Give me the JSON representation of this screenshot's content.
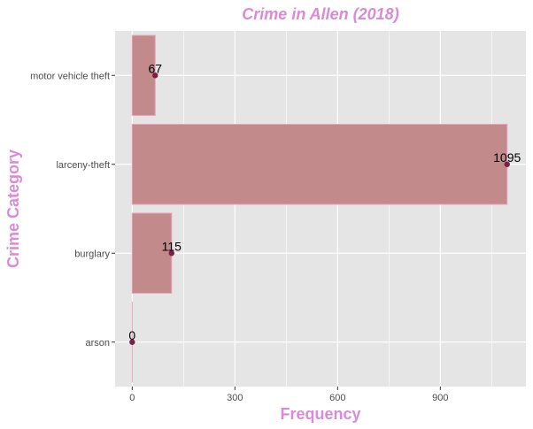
{
  "chart_data": {
    "type": "bar",
    "orientation": "horizontal",
    "title": "Crime in Allen (2018)",
    "xlabel": "Frequency",
    "ylabel": "Crime Category",
    "categories": [
      "arson",
      "burglary",
      "larceny-theft",
      "motor vehicle theft"
    ],
    "values": [
      0,
      115,
      1095,
      67
    ],
    "data_labels": [
      "0",
      "115",
      "1095",
      "67"
    ],
    "xlim": [
      -50,
      1150
    ],
    "xticks": [
      0,
      300,
      600,
      900
    ],
    "xtick_labels": [
      "0",
      "300",
      "600",
      "900"
    ],
    "grid": true,
    "legend": "none",
    "colors": {
      "bar_fill": "#c28a8a",
      "bar_outline": "#e8a0b8",
      "point": "#7a2048",
      "title": "#d98ad9",
      "panel": "#e5e5e5",
      "grid": "#ffffff"
    }
  }
}
